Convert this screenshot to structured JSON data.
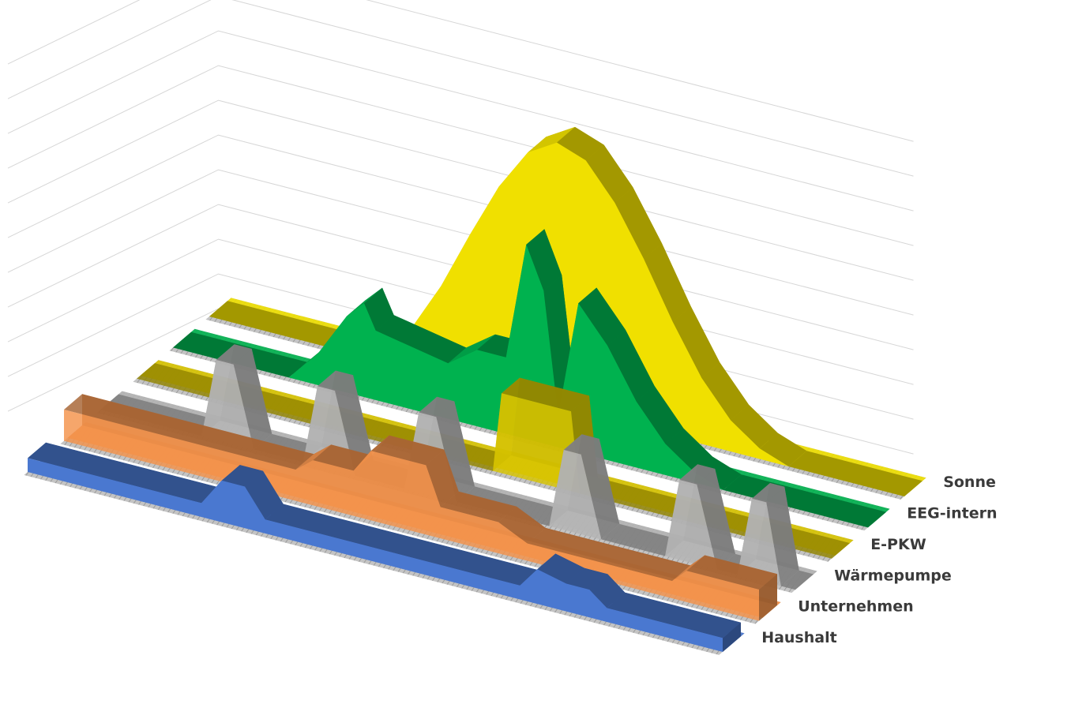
{
  "chart_data": {
    "type": "area",
    "projection": "3d",
    "title": "",
    "xlabel": "",
    "ylabel": "",
    "grid": true,
    "legend": "none",
    "x_range": [
      0,
      24
    ],
    "y_range": [
      0,
      10
    ],
    "series": [
      {
        "name": "Sonne",
        "color": "#f0e000",
        "values": [
          [
            0,
            0
          ],
          [
            5,
            0
          ],
          [
            6,
            0.3
          ],
          [
            7,
            1.2
          ],
          [
            8,
            2.6
          ],
          [
            9,
            4.3
          ],
          [
            10,
            5.9
          ],
          [
            11,
            7.1
          ],
          [
            12,
            7.6
          ],
          [
            13,
            7.3
          ],
          [
            14,
            6.3
          ],
          [
            15,
            4.9
          ],
          [
            16,
            3.3
          ],
          [
            17,
            1.9
          ],
          [
            18,
            0.9
          ],
          [
            19,
            0.3
          ],
          [
            20,
            0
          ],
          [
            24,
            0
          ]
        ]
      },
      {
        "name": "EEG-intern",
        "color": "#00b24f",
        "values": [
          [
            0,
            0
          ],
          [
            4,
            0
          ],
          [
            5,
            0.9
          ],
          [
            6,
            2.2
          ],
          [
            6.6,
            2.7
          ],
          [
            7,
            2
          ],
          [
            9.5,
            1.6
          ],
          [
            10.5,
            2.2
          ],
          [
            11.5,
            2.2
          ],
          [
            12.2,
            5.6
          ],
          [
            12.8,
            4.4
          ],
          [
            13.3,
            0.9
          ],
          [
            14,
            4.3
          ],
          [
            15,
            3.3
          ],
          [
            16,
            1.9
          ],
          [
            17,
            0.9
          ],
          [
            18,
            0.3
          ],
          [
            19,
            0
          ],
          [
            24,
            0
          ]
        ]
      },
      {
        "name": "E-PKW",
        "color": "#d8c400",
        "values": [
          [
            0,
            0
          ],
          [
            12.3,
            0
          ],
          [
            12.6,
            2.3
          ],
          [
            15,
            2.3
          ],
          [
            15.3,
            0
          ],
          [
            24,
            0
          ]
        ]
      },
      {
        "name": "Wärmepumpe",
        "color": "#b4b4b4",
        "values": [
          [
            0,
            0
          ],
          [
            3.5,
            0
          ],
          [
            4,
            2.3
          ],
          [
            4.6,
            2.3
          ],
          [
            5.3,
            0
          ],
          [
            7,
            0
          ],
          [
            7.5,
            2.3
          ],
          [
            8.1,
            2.3
          ],
          [
            8.8,
            0
          ],
          [
            10.5,
            0
          ],
          [
            11,
            2.3
          ],
          [
            11.6,
            2.3
          ],
          [
            12.3,
            0
          ],
          [
            15.5,
            0
          ],
          [
            16,
            2.3
          ],
          [
            16.6,
            2.3
          ],
          [
            17.3,
            0
          ],
          [
            19.5,
            0
          ],
          [
            20,
            2.3
          ],
          [
            20.6,
            2.3
          ],
          [
            21.3,
            0
          ],
          [
            22,
            0
          ],
          [
            22.5,
            2.3
          ],
          [
            23,
            2.3
          ],
          [
            23.5,
            0
          ],
          [
            24,
            0
          ]
        ]
      },
      {
        "name": "Unternehmen",
        "color": "#f4924a",
        "values": [
          [
            0,
            0.9
          ],
          [
            8,
            0.9
          ],
          [
            8.6,
            1.3
          ],
          [
            10,
            1.3
          ],
          [
            10.6,
            2
          ],
          [
            12.5,
            2
          ],
          [
            13,
            0.9
          ],
          [
            15,
            0.9
          ],
          [
            16,
            0.5
          ],
          [
            21,
            0.5
          ],
          [
            21.5,
            0.9
          ],
          [
            24,
            0.9
          ]
        ]
      },
      {
        "name": "Haushalt",
        "color": "#4a78d0",
        "values": [
          [
            0,
            0.4
          ],
          [
            6,
            0.4
          ],
          [
            6.7,
            1.2
          ],
          [
            7.5,
            1.2
          ],
          [
            8.2,
            0.4
          ],
          [
            17,
            0.4
          ],
          [
            17.6,
            1
          ],
          [
            18.6,
            0.8
          ],
          [
            19.4,
            0.8
          ],
          [
            20,
            0.4
          ],
          [
            24,
            0.4
          ]
        ]
      }
    ]
  }
}
